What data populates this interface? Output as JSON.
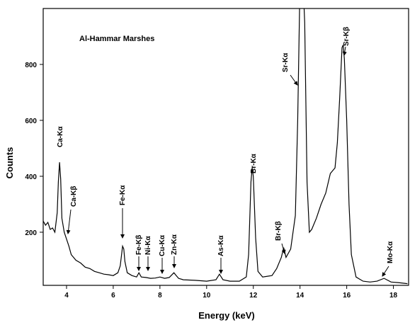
{
  "chart_data": {
    "type": "line",
    "title": "Al-Hammar Marshes",
    "x_label": "Energy (keV)",
    "y_label": "Counts",
    "color": "#000000",
    "xlim": [
      3,
      18.65
    ],
    "ylim": [
      10,
      1000
    ],
    "xticks": [
      4,
      6,
      8,
      10,
      12,
      14,
      16,
      18
    ],
    "yticks": [
      200,
      400,
      600,
      800
    ],
    "x": [
      3.0,
      3.1,
      3.2,
      3.3,
      3.4,
      3.5,
      3.6,
      3.65,
      3.7,
      3.75,
      3.8,
      3.9,
      4.0,
      4.1,
      4.2,
      4.4,
      4.6,
      4.8,
      5.0,
      5.2,
      5.4,
      5.6,
      5.8,
      6.0,
      6.2,
      6.3,
      6.4,
      6.45,
      6.5,
      6.6,
      6.8,
      7.0,
      7.1,
      7.2,
      7.4,
      7.6,
      7.8,
      8.0,
      8.2,
      8.4,
      8.6,
      8.7,
      8.8,
      9.0,
      9.5,
      10.0,
      10.4,
      10.55,
      10.7,
      11.0,
      11.4,
      11.7,
      11.8,
      11.9,
      11.95,
      12.0,
      12.1,
      12.2,
      12.4,
      12.8,
      13.0,
      13.2,
      13.3,
      13.4,
      13.6,
      13.8,
      13.9,
      14.0,
      14.1,
      14.2,
      14.3,
      14.4,
      14.5,
      14.7,
      14.9,
      15.1,
      15.3,
      15.5,
      15.6,
      15.7,
      15.8,
      15.85,
      15.9,
      16.0,
      16.1,
      16.2,
      16.4,
      16.7,
      17.0,
      17.3,
      17.6,
      17.9,
      18.2,
      18.6
    ],
    "values": [
      240,
      225,
      235,
      210,
      215,
      200,
      270,
      380,
      450,
      390,
      250,
      200,
      175,
      150,
      120,
      100,
      90,
      75,
      70,
      60,
      55,
      50,
      48,
      45,
      55,
      80,
      150,
      140,
      95,
      55,
      45,
      40,
      55,
      40,
      38,
      35,
      36,
      40,
      35,
      38,
      55,
      45,
      35,
      30,
      28,
      25,
      30,
      50,
      30,
      25,
      25,
      40,
      120,
      380,
      430,
      400,
      180,
      60,
      40,
      45,
      70,
      110,
      145,
      110,
      140,
      260,
      600,
      1100,
      1150,
      950,
      380,
      200,
      210,
      250,
      300,
      340,
      410,
      430,
      520,
      680,
      860,
      870,
      820,
      600,
      300,
      120,
      40,
      25,
      22,
      25,
      35,
      22,
      20,
      16
    ],
    "annotations": [
      "Ca-Kα",
      "Ca-Kβ",
      "Fe-Kα",
      "Fe-Kβ",
      "Ni-Kα",
      "Cu-Kα",
      "Zn-Kα",
      "As-Kα",
      "Br-Kα",
      "Br-Kβ",
      "Sr-Kα",
      "Sr-Kβ",
      "Mo-Kα"
    ]
  }
}
